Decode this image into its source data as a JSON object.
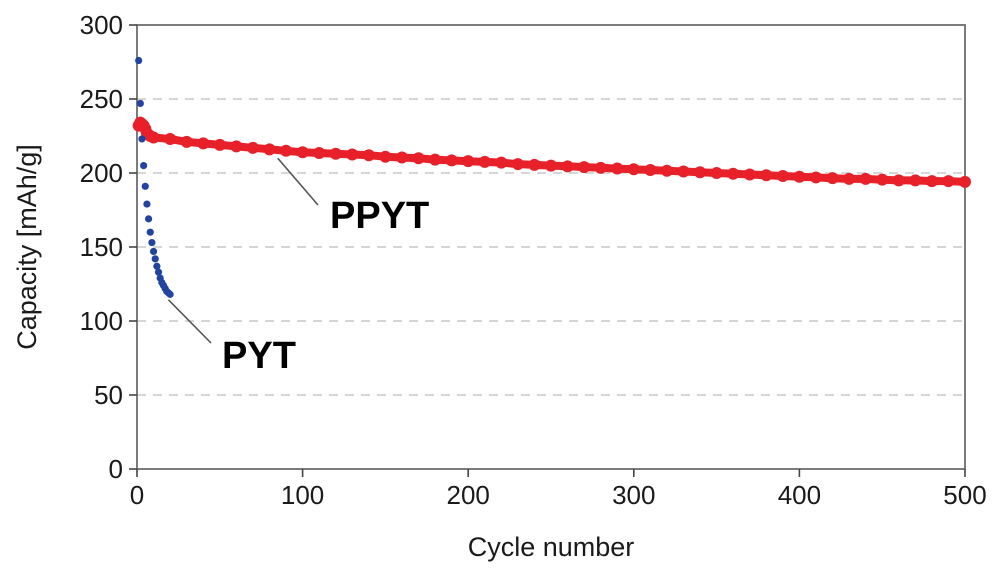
{
  "chart_data": {
    "type": "scatter",
    "title": "",
    "xlabel": "Cycle number",
    "ylabel": "Capacity [mAh/g]",
    "xlim": [
      0,
      500
    ],
    "ylim": [
      0,
      300
    ],
    "xticks": [
      0,
      100,
      200,
      300,
      400,
      500
    ],
    "yticks": [
      0,
      50,
      100,
      150,
      200,
      250,
      300
    ],
    "xtick_labels": [
      "0",
      "100",
      "200",
      "300",
      "400",
      "500"
    ],
    "ytick_labels": [
      "0",
      "50",
      "100",
      "150",
      "200",
      "250",
      "300"
    ],
    "grid": "horizontal-dashed",
    "series": [
      {
        "name": "PPYT",
        "color": "#e8202a",
        "x": [
          1,
          2,
          3,
          4,
          5,
          6,
          8,
          10,
          20,
          30,
          40,
          50,
          60,
          70,
          80,
          90,
          100,
          110,
          120,
          130,
          140,
          150,
          160,
          170,
          180,
          190,
          200,
          210,
          220,
          230,
          240,
          250,
          260,
          270,
          280,
          290,
          300,
          310,
          320,
          330,
          340,
          350,
          360,
          370,
          380,
          390,
          400,
          410,
          420,
          430,
          440,
          450,
          460,
          470,
          480,
          490,
          500
        ],
        "values": [
          232,
          234,
          233,
          232,
          230,
          227,
          225,
          224,
          223,
          221,
          220,
          219,
          218,
          217,
          216,
          215,
          214,
          213.5,
          213,
          212.5,
          212,
          211,
          210.5,
          210,
          209,
          208.5,
          208,
          207.5,
          207,
          206,
          205.5,
          205,
          204.5,
          204,
          203.5,
          203,
          202.5,
          202,
          201.5,
          201,
          200.5,
          200,
          199.5,
          199,
          198.5,
          198,
          197.5,
          197,
          196.5,
          196,
          196,
          195.5,
          195,
          195,
          194.5,
          194.5,
          194
        ]
      },
      {
        "name": "PYT",
        "color": "#2244a0",
        "x": [
          1,
          2,
          3,
          4,
          5,
          6,
          7,
          8,
          9,
          10,
          11,
          12,
          13,
          14,
          15,
          16,
          17,
          18,
          19,
          20
        ],
        "values": [
          276,
          247,
          223,
          205,
          191,
          179,
          169,
          160,
          153,
          147,
          142,
          137,
          133,
          129,
          126,
          124,
          122,
          120,
          119,
          118
        ]
      }
    ],
    "annotations": [
      {
        "text": "PPYT",
        "target_series": "PPYT"
      },
      {
        "text": "PYT",
        "target_series": "PYT"
      }
    ]
  }
}
